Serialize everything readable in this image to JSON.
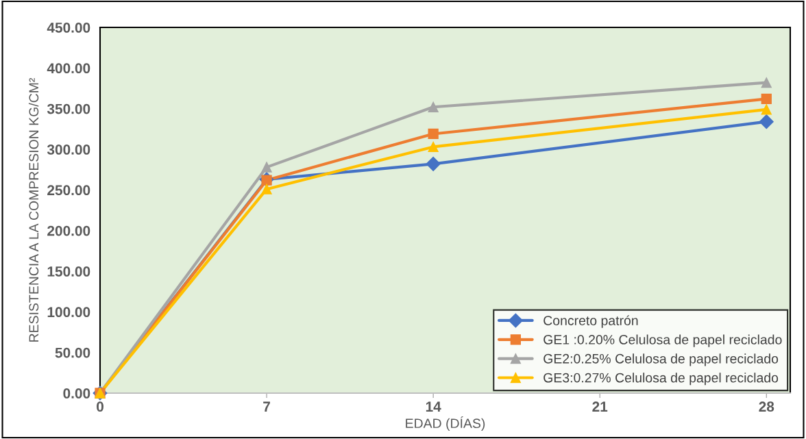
{
  "chart_data": {
    "type": "line",
    "xlabel": "EDAD (DÍAS)",
    "ylabel": "RESISTENCIA A LA COMPRESION KG/CM²",
    "x": [
      0,
      7,
      14,
      28
    ],
    "series": [
      {
        "name": "Concreto patrón",
        "color": "#4472c4",
        "marker": "diamond",
        "values": [
          0,
          263,
          282,
          334
        ]
      },
      {
        "name": "GE1 :0.20% Celulosa de papel reciclado",
        "color": "#ed7d31",
        "marker": "square",
        "values": [
          0,
          262,
          319,
          362
        ]
      },
      {
        "name": "GE2:0.25% Celulosa de papel reciclado",
        "color": "#a5a5a5",
        "marker": "triangle",
        "values": [
          0,
          278,
          352,
          382
        ]
      },
      {
        "name": "GE3:0.27% Celulosa de papel reciclado",
        "color": "#ffc000",
        "marker": "triangle",
        "values": [
          0,
          251,
          303,
          349
        ]
      }
    ],
    "xlim": [
      0,
      29
    ],
    "xticks": [
      0,
      7,
      14,
      21,
      28
    ],
    "ylim": [
      0,
      450
    ],
    "yticks": [
      {
        "value": 0,
        "label": "0.00"
      },
      {
        "value": 50,
        "label": "50.00"
      },
      {
        "value": 100,
        "label": "100.00"
      },
      {
        "value": 150,
        "label": "150.00"
      },
      {
        "value": 200,
        "label": "200.00"
      },
      {
        "value": 250,
        "label": "250.00"
      },
      {
        "value": 300,
        "label": "300.00"
      },
      {
        "value": 350,
        "label": "350.00"
      },
      {
        "value": 400,
        "label": "400.00"
      },
      {
        "value": 450,
        "label": "450.00"
      }
    ],
    "grid": false,
    "legend": "bottom right",
    "line_style": "solid"
  }
}
